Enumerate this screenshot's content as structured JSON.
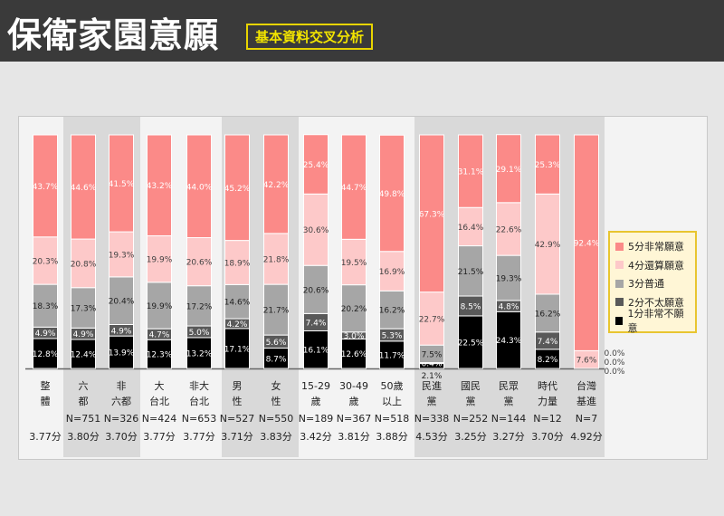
{
  "header": {
    "title": "保衛家園意願",
    "subtitle": "基本資料交叉分析"
  },
  "colors": {
    "s5": "#fb8a88",
    "s4": "#fdc9c9",
    "s3": "#a6a6a6",
    "s2": "#595959",
    "s1": "#000000"
  },
  "chart_data": {
    "type": "bar",
    "stacked": true,
    "ylim": [
      0,
      100
    ],
    "legend_position": "right",
    "categories": [
      {
        "line1": "整",
        "line2": "體",
        "n": "",
        "score": "3.77分"
      },
      {
        "line1": "六",
        "line2": "都",
        "n": "N=751",
        "score": "3.80分"
      },
      {
        "line1": "非",
        "line2": "六都",
        "n": "N=326",
        "score": "3.70分"
      },
      {
        "line1": "大",
        "line2": "台北",
        "n": "N=424",
        "score": "3.77分"
      },
      {
        "line1": "非大",
        "line2": "台北",
        "n": "N=653",
        "score": "3.77分"
      },
      {
        "line1": "男",
        "line2": "性",
        "n": "N=527",
        "score": "3.71分"
      },
      {
        "line1": "女",
        "line2": "性",
        "n": "N=550",
        "score": "3.83分"
      },
      {
        "line1": "15-29",
        "line2": "歲",
        "n": "N=189",
        "score": "3.42分"
      },
      {
        "line1": "30-49",
        "line2": "歲",
        "n": "N=367",
        "score": "3.81分"
      },
      {
        "line1": "50歲",
        "line2": "以上",
        "n": "N=518",
        "score": "3.88分"
      },
      {
        "line1": "民進",
        "line2": "黨",
        "n": "N=338",
        "score": "4.53分"
      },
      {
        "line1": "國民",
        "line2": "黨",
        "n": "N=252",
        "score": "3.25分"
      },
      {
        "line1": "民眾",
        "line2": "黨",
        "n": "N=144",
        "score": "3.27分"
      },
      {
        "line1": "時代",
        "line2": "力量",
        "n": "N=12",
        "score": "3.70分"
      },
      {
        "line1": "台灣",
        "line2": "基進",
        "n": "N=7",
        "score": "4.92分"
      }
    ],
    "series": [
      {
        "name": "1分非常不願意",
        "key": "s1",
        "values": [
          12.8,
          12.4,
          13.9,
          12.3,
          13.2,
          17.1,
          8.7,
          16.1,
          12.6,
          11.7,
          2.1,
          22.5,
          24.3,
          8.2,
          0.0
        ]
      },
      {
        "name": "2分不太願意",
        "key": "s2",
        "values": [
          4.9,
          4.9,
          4.9,
          4.7,
          5.0,
          4.2,
          5.6,
          7.4,
          3.0,
          5.3,
          0.4,
          8.5,
          4.8,
          7.4,
          0.0
        ]
      },
      {
        "name": "3分普通",
        "key": "s3",
        "values": [
          18.3,
          17.3,
          20.4,
          19.9,
          17.2,
          14.6,
          21.7,
          20.6,
          20.2,
          16.2,
          7.5,
          21.5,
          19.3,
          16.2,
          0.0
        ]
      },
      {
        "name": "4分還算願意",
        "key": "s4",
        "values": [
          20.3,
          20.8,
          19.3,
          19.9,
          20.6,
          18.9,
          21.8,
          30.6,
          19.5,
          16.9,
          22.7,
          16.4,
          22.6,
          42.9,
          7.6
        ]
      },
      {
        "name": "5分非常願意",
        "key": "s5",
        "values": [
          43.7,
          44.6,
          41.5,
          43.2,
          44.0,
          45.2,
          42.2,
          25.4,
          44.7,
          49.8,
          67.3,
          31.1,
          29.1,
          25.3,
          92.4
        ]
      }
    ]
  }
}
